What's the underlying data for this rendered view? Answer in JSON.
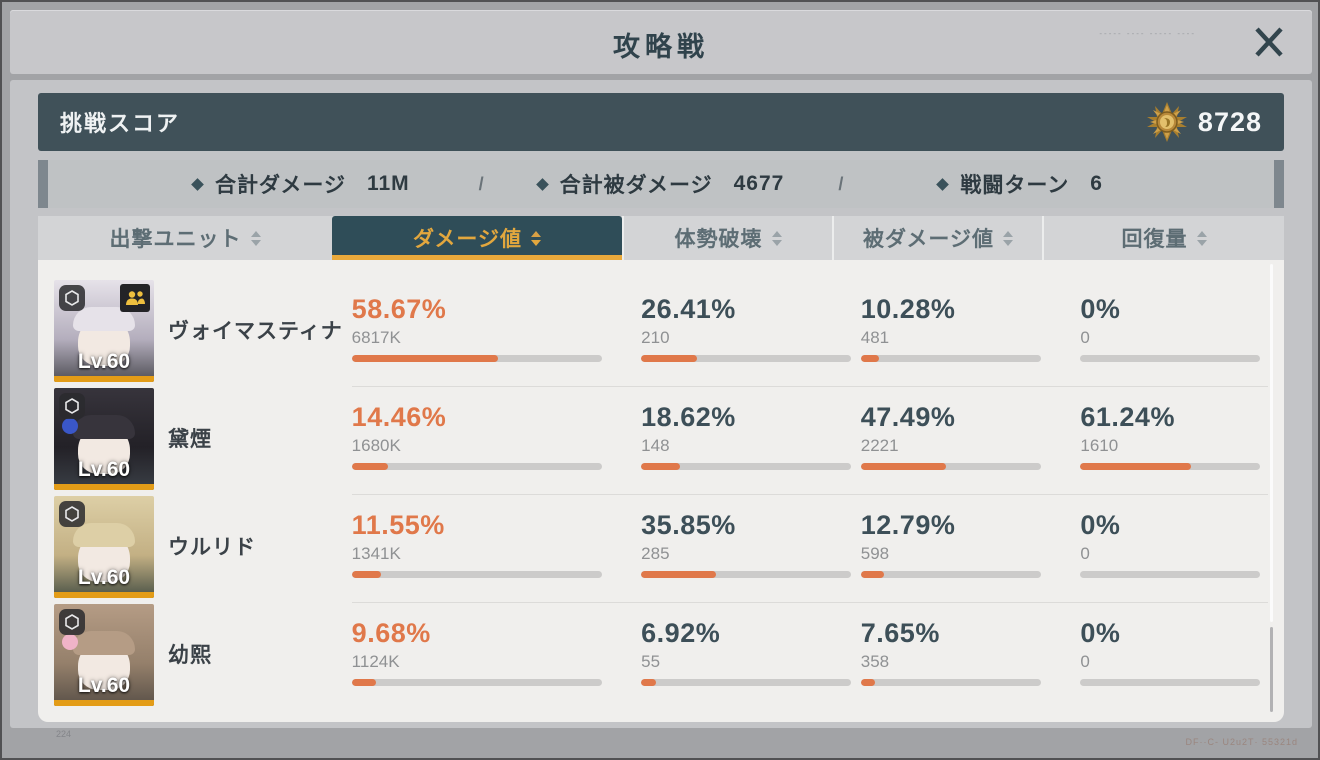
{
  "window": {
    "title": "攻略戦",
    "close_glyph": "✕"
  },
  "score_bar": {
    "label": "挑戦スコア",
    "value": "8728",
    "medal_icon": "gold-medal"
  },
  "summary": {
    "separator": "/",
    "stats": [
      {
        "label": "合計ダメージ",
        "value": "11M"
      },
      {
        "label": "合計被ダメージ",
        "value": "4677"
      },
      {
        "label": "戦闘ターン",
        "value": "6"
      }
    ]
  },
  "tabs": [
    {
      "label": "出撃ユニット",
      "selected": false
    },
    {
      "label": "ダメージ値",
      "selected": true
    },
    {
      "label": "体勢破壊",
      "selected": false
    },
    {
      "label": "被ダメージ値",
      "selected": false
    },
    {
      "label": "回復量",
      "selected": false
    }
  ],
  "table": {
    "rows": [
      {
        "name": "ヴォイマスティナ",
        "level": "Lv.60",
        "badges": [
          "shield",
          "support"
        ],
        "avatar": {
          "hair_top": "#e6e2e9",
          "hair_mid": "#b4aebd",
          "body": "#4e4e54",
          "accent": ""
        },
        "stats": [
          {
            "percent": "58.67%",
            "value": "6817K",
            "fill": 58.67
          },
          {
            "percent": "26.41%",
            "value": "210",
            "fill": 26.41
          },
          {
            "percent": "10.28%",
            "value": "481",
            "fill": 10.28
          },
          {
            "percent": "0%",
            "value": "0",
            "fill": 0
          }
        ]
      },
      {
        "name": "黛煙",
        "level": "Lv.60",
        "badges": [
          "shield"
        ],
        "avatar": {
          "hair_top": "#37343c",
          "hair_mid": "#232127",
          "body": "#3a3f46",
          "accent": "#3a57c8"
        },
        "stats": [
          {
            "percent": "14.46%",
            "value": "1680K",
            "fill": 14.46
          },
          {
            "percent": "18.62%",
            "value": "148",
            "fill": 18.62
          },
          {
            "percent": "47.49%",
            "value": "2221",
            "fill": 47.49
          },
          {
            "percent": "61.24%",
            "value": "1610",
            "fill": 61.24
          }
        ]
      },
      {
        "name": "ウルリド",
        "level": "Lv.60",
        "badges": [
          "shield"
        ],
        "avatar": {
          "hair_top": "#ddcfa6",
          "hair_mid": "#c3b084",
          "body": "#4a5246",
          "accent": ""
        },
        "stats": [
          {
            "percent": "11.55%",
            "value": "1341K",
            "fill": 11.55
          },
          {
            "percent": "35.85%",
            "value": "285",
            "fill": 35.85
          },
          {
            "percent": "12.79%",
            "value": "598",
            "fill": 12.79
          },
          {
            "percent": "0%",
            "value": "0",
            "fill": 0
          }
        ]
      },
      {
        "name": "幼熙",
        "level": "Lv.60",
        "badges": [
          "shield"
        ],
        "avatar": {
          "hair_top": "#b59c85",
          "hair_mid": "#95806b",
          "body": "#5a5148",
          "accent": "#f0b3c8"
        },
        "stats": [
          {
            "percent": "9.68%",
            "value": "1124K",
            "fill": 9.68
          },
          {
            "percent": "6.92%",
            "value": "55",
            "fill": 6.92
          },
          {
            "percent": "7.65%",
            "value": "358",
            "fill": 7.65
          },
          {
            "percent": "0%",
            "value": "0",
            "fill": 0
          }
        ]
      }
    ]
  },
  "watermarks": {
    "top_right": "‐‐‐‐‐ ‐‐‐‐ ‐‐‐‐‐ ‐‐‐‐",
    "bottom_left": "224",
    "bottom_right": "DF··C‐ U2u2T· 55321d"
  },
  "colors": {
    "accent_orange": "#e0784a",
    "accent_gold": "#e9a93b",
    "dark_teal_text": "#3d4f58",
    "score_bar_bg": "#405159",
    "selected_tab_bg": "#2f4d58",
    "table_bg": "#f0efed",
    "value_gray": "#8f9193",
    "avatar_rank_strip": "#e39c17"
  }
}
